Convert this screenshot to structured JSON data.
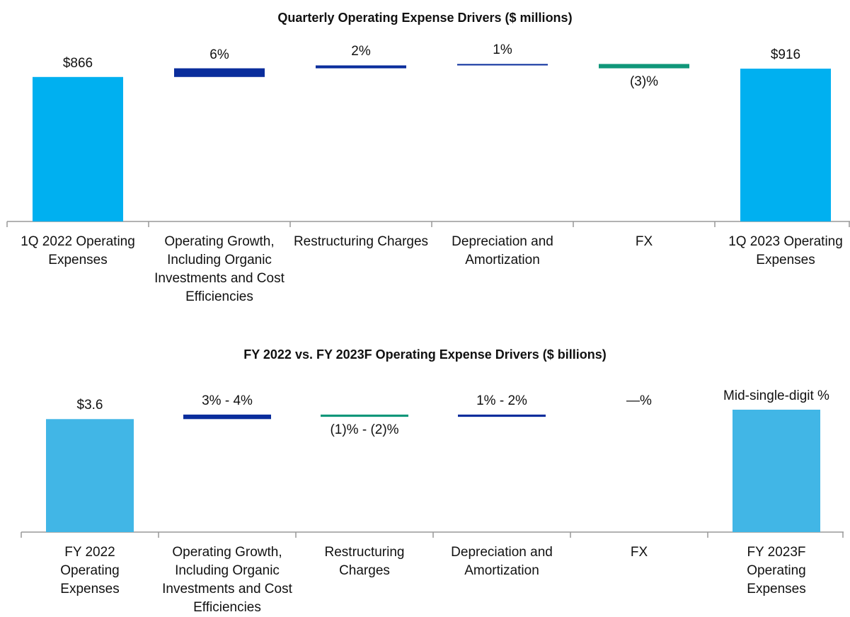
{
  "chart_data": [
    {
      "type": "waterfall",
      "title": "Quarterly Operating Expense Drivers ($ millions)",
      "categories": [
        "1Q 2022 Operating Expenses",
        "Operating Growth, Including Organic Investments and Cost Efficiencies",
        "Restructuring Charges",
        "Depreciation and Amortization",
        "FX",
        "1Q 2023 Operating Expenses"
      ],
      "values": [
        866,
        6,
        2,
        1,
        -3,
        916
      ],
      "value_labels": [
        "$866",
        "6%",
        "2%",
        "1%",
        "(3)%",
        "$916"
      ],
      "colors": {
        "total": "#00b0f0",
        "increase": "#0a2d9c",
        "decrease": "#10977a"
      }
    },
    {
      "type": "waterfall",
      "title": "FY 2022 vs. FY 2023F Operating Expense Drivers ($ billions)",
      "categories": [
        "FY 2022 Operating Expenses",
        "Operating Growth, Including Organic Investments and Cost Efficiencies",
        "Restructuring Charges",
        "Depreciation and Amortization",
        "FX",
        "FY 2023F Operating Expenses"
      ],
      "values": [
        3.6,
        [
          3,
          4
        ],
        [
          -1,
          -2
        ],
        [
          1,
          2
        ],
        0,
        3.9
      ],
      "value_labels": [
        "$3.6",
        "3% - 4%",
        "(1)% - (2)%",
        "1% - 2%",
        "—%",
        "Mid-single-digit %"
      ],
      "colors": {
        "total": "#41b6e6",
        "increase": "#0a2d9c",
        "decrease": "#10977a"
      }
    }
  ]
}
